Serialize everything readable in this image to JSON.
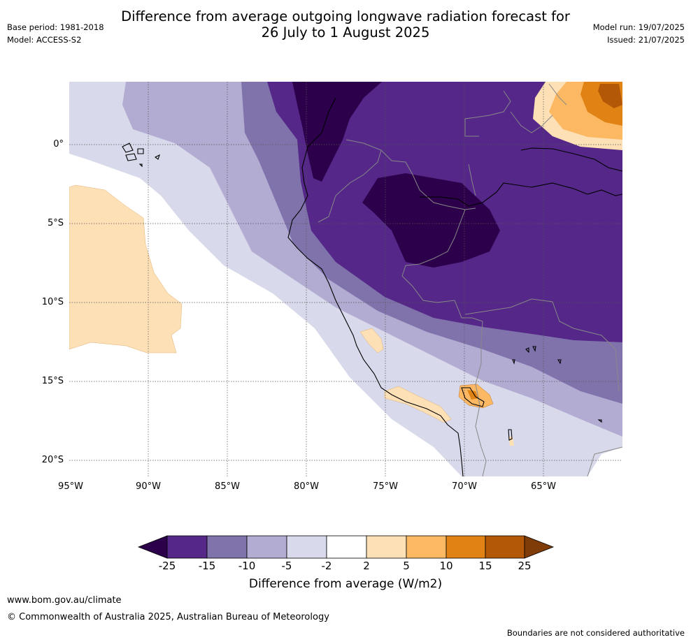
{
  "header": {
    "title_line1": "Difference from average outgoing longwave radiation forecast for",
    "title_line2": "26 July to 1 August 2025",
    "base_period": "Base period: 1981-2018",
    "model": "Model: ACCESS-S2",
    "model_run": "Model run: 19/07/2025",
    "issued": "Issued: 21/07/2025"
  },
  "map": {
    "lat_labels": [
      "0°",
      "5°S",
      "10°S",
      "15°S",
      "20°S"
    ],
    "lon_labels": [
      "95°W",
      "90°W",
      "85°W",
      "80°W",
      "75°W",
      "70°W",
      "65°W"
    ]
  },
  "colorbar": {
    "ticks": [
      "-25",
      "-15",
      "-10",
      "-5",
      "-2",
      "2",
      "5",
      "10",
      "15",
      "25"
    ],
    "colors": [
      "#2d004b",
      "#542788",
      "#8073ac",
      "#b2abd2",
      "#d8daeb",
      "#ffffff",
      "#fee0b6",
      "#fdb863",
      "#e08214",
      "#b35806",
      "#7f3b08"
    ],
    "label": "Difference from average (W/m2)"
  },
  "footer": {
    "url": "www.bom.gov.au/climate",
    "copyright": "© Commonwealth of Australia 2025, Australian Bureau of Meteorology",
    "disclaimer": "Boundaries are not considered authoritative"
  }
}
